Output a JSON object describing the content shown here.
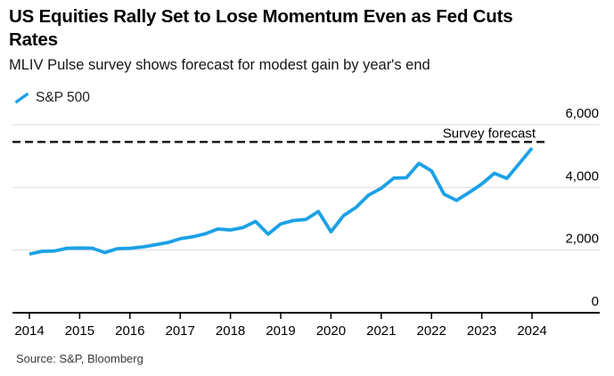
{
  "header": {
    "title": "US Equities Rally Set to Lose Momentum Even as Fed Cuts\nRates",
    "subtitle": "MLIV Pulse survey shows forecast for modest gain by year's end"
  },
  "legend": {
    "series_label": "S&P 500"
  },
  "source": "Source: S&P, Bloomberg",
  "colors": {
    "line": "#1BA1E6",
    "dashed_line": "#111111",
    "grid": "#dbdbdb",
    "axis": "#000000",
    "label_text": "#000000"
  },
  "chart_data": {
    "type": "line",
    "title": "US Equities Rally Set to Lose Momentum Even as Fed Cuts Rates",
    "subtitle": "MLIV Pulse survey shows forecast for modest gain by year's end",
    "legend_position": "top-left",
    "grid": "horizontal",
    "xlim": [
      2013.66,
      2025.35
    ],
    "ylim": [
      0,
      6300
    ],
    "x_ticks": [
      2014,
      2015,
      2016,
      2017,
      2018,
      2019,
      2020,
      2021,
      2022,
      2023,
      2024
    ],
    "x_tick_labels": [
      "2014",
      "2015",
      "2016",
      "2017",
      "2018",
      "2019",
      "2020",
      "2021",
      "2022",
      "2023",
      "2024"
    ],
    "y_ticks": [
      0,
      2000,
      4000,
      6000
    ],
    "y_tick_labels": [
      "0",
      "2,000",
      "4,000",
      "6,000"
    ],
    "annotation": {
      "label": "Survey forecast",
      "value": 5450
    },
    "series": [
      {
        "name": "S&P 500",
        "color": "#1BA1E6",
        "x_note": "quarter-end values plotted at quarter start, 2014 Q1 through 2024 Q1",
        "x": [
          2014.0,
          2014.25,
          2014.5,
          2014.75,
          2015.0,
          2015.25,
          2015.5,
          2015.75,
          2016.0,
          2016.25,
          2016.5,
          2016.75,
          2017.0,
          2017.25,
          2017.5,
          2017.75,
          2018.0,
          2018.25,
          2018.5,
          2018.75,
          2019.0,
          2019.25,
          2019.5,
          2019.75,
          2020.0,
          2020.25,
          2020.5,
          2020.75,
          2021.0,
          2021.25,
          2021.5,
          2021.75,
          2022.0,
          2022.25,
          2022.5,
          2022.75,
          2023.0,
          2023.25,
          2023.5,
          2023.75,
          2024.0
        ],
        "y": [
          1872,
          1960,
          1972,
          2059,
          2068,
          2063,
          1920,
          2044,
          2060,
          2099,
          2168,
          2239,
          2363,
          2423,
          2519,
          2674,
          2641,
          2718,
          2914,
          2507,
          2834,
          2942,
          2977,
          3231,
          2585,
          3100,
          3363,
          3756,
          3973,
          4298,
          4308,
          4766,
          4530,
          3785,
          3586,
          3840,
          4109,
          4450,
          4288,
          4770,
          5254
        ]
      }
    ]
  }
}
